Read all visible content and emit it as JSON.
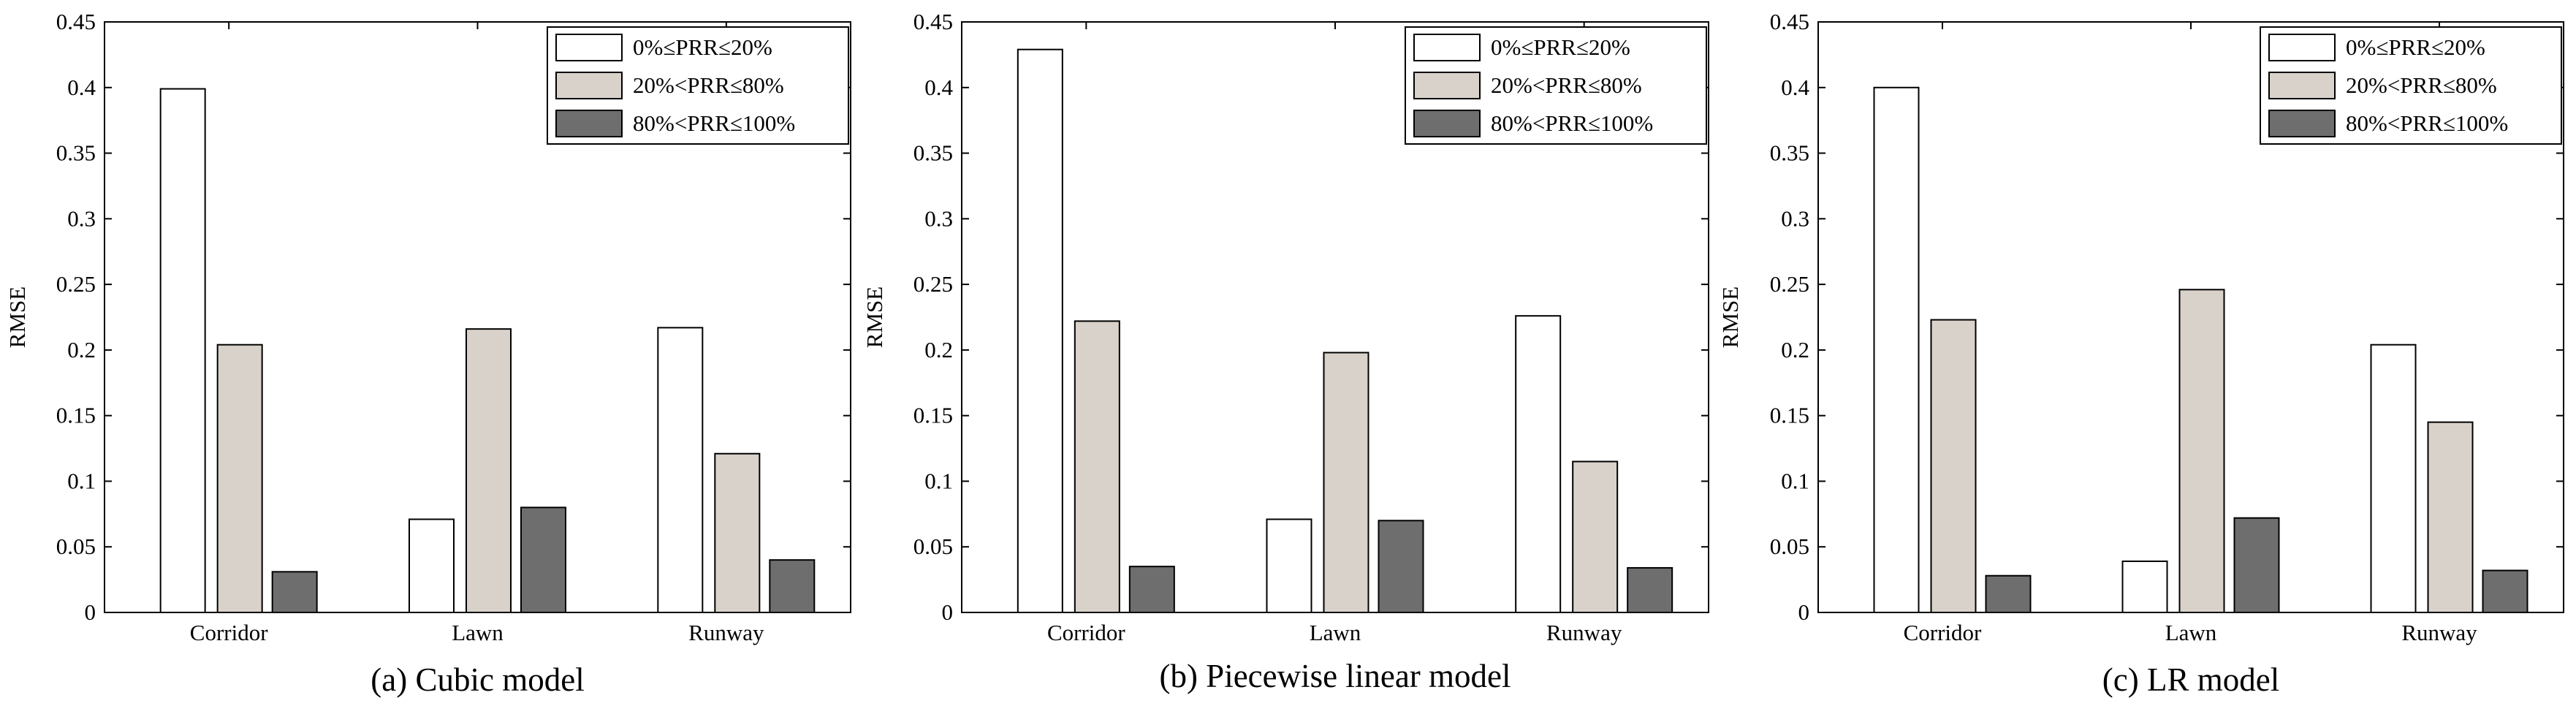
{
  "chart_data": [
    {
      "type": "bar",
      "caption": "(a) Cubic model",
      "categories": [
        "Corridor",
        "Lawn",
        "Runway"
      ],
      "series": [
        {
          "name": "0%≤PRR≤20%",
          "values": [
            0.399,
            0.071,
            0.217
          ]
        },
        {
          "name": "20%<PRR≤80%",
          "values": [
            0.204,
            0.216,
            0.121
          ]
        },
        {
          "name": "80%<PRR≤100%",
          "values": [
            0.031,
            0.08,
            0.04
          ]
        }
      ],
      "xlabel": "",
      "ylabel": "RMSE",
      "ylim": [
        0,
        0.45
      ],
      "yticks": [
        "0",
        "0.05",
        "0.1",
        "0.15",
        "0.2",
        "0.25",
        "0.3",
        "0.35",
        "0.4",
        "0.45"
      ],
      "grid": false,
      "legend_position": "top-right"
    },
    {
      "type": "bar",
      "caption": "(b) Piecewise linear model",
      "categories": [
        "Corridor",
        "Lawn",
        "Runway"
      ],
      "series": [
        {
          "name": "0%≤PRR≤20%",
          "values": [
            0.429,
            0.071,
            0.226
          ]
        },
        {
          "name": "20%<PRR≤80%",
          "values": [
            0.222,
            0.198,
            0.115
          ]
        },
        {
          "name": "80%<PRR≤100%",
          "values": [
            0.035,
            0.07,
            0.034
          ]
        }
      ],
      "xlabel": "",
      "ylabel": "RMSE",
      "ylim": [
        0,
        0.45
      ],
      "yticks": [
        "0",
        "0.05",
        "0.1",
        "0.15",
        "0.2",
        "0.25",
        "0.3",
        "0.35",
        "0.4",
        "0.45"
      ],
      "grid": false,
      "legend_position": "top-right"
    },
    {
      "type": "bar",
      "caption": "(c) LR model",
      "categories": [
        "Corridor",
        "Lawn",
        "Runway"
      ],
      "series": [
        {
          "name": "0%≤PRR≤20%",
          "values": [
            0.4,
            0.039,
            0.204
          ]
        },
        {
          "name": "20%<PRR≤80%",
          "values": [
            0.223,
            0.246,
            0.145
          ]
        },
        {
          "name": "80%<PRR≤100%",
          "values": [
            0.028,
            0.072,
            0.032
          ]
        }
      ],
      "xlabel": "",
      "ylabel": "RMSE",
      "ylim": [
        0,
        0.45
      ],
      "yticks": [
        "0",
        "0.05",
        "0.1",
        "0.15",
        "0.2",
        "0.25",
        "0.3",
        "0.35",
        "0.4",
        "0.45"
      ],
      "grid": false,
      "legend_position": "top-right"
    }
  ],
  "colors": {
    "series_fills": [
      "#ffffff",
      "#d9d2cb",
      "#6e6e6e"
    ],
    "outline": "#000000"
  }
}
